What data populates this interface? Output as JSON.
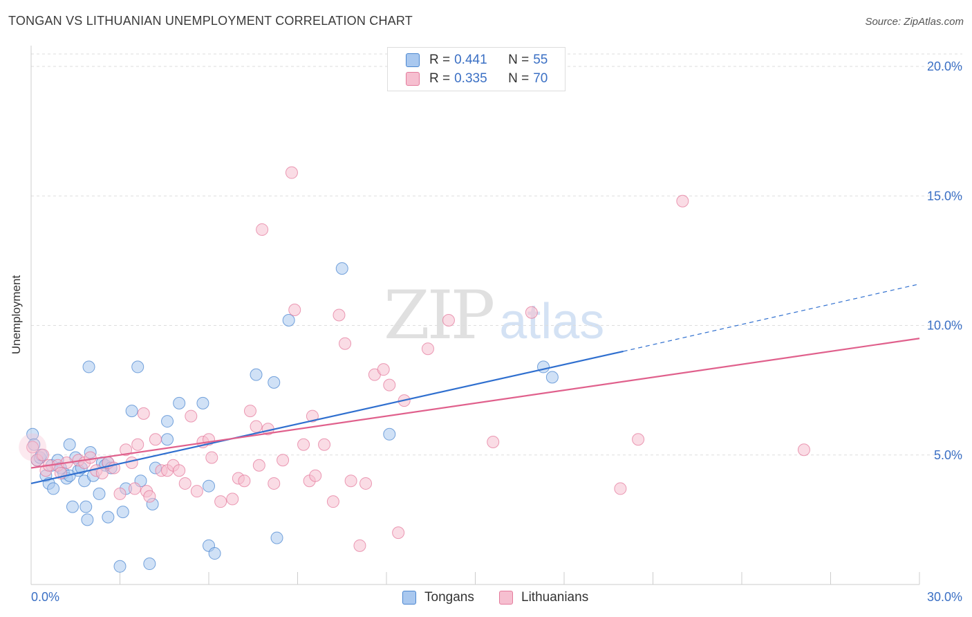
{
  "header": {
    "title": "TONGAN VS LITHUANIAN UNEMPLOYMENT CORRELATION CHART",
    "source": "Source: ZipAtlas.com"
  },
  "watermark": {
    "zip": "ZIP",
    "atlas": "atlas"
  },
  "colors": {
    "tongans_fill": "#a9c8ef",
    "tongans_stroke": "#4a86d0",
    "tongans_line": "#2f6fcf",
    "lithuanians_fill": "#f6bfd0",
    "lithuanians_stroke": "#e47a9c",
    "lithuanians_line": "#e0608c",
    "tick_text": "#3a6fc4"
  },
  "legend_top": {
    "rows": [
      {
        "r_label": "R =",
        "r_value": "0.441",
        "n_label": "N =",
        "n_value": "55"
      },
      {
        "r_label": "R =",
        "r_value": "0.335",
        "n_label": "N =",
        "n_value": "70"
      }
    ]
  },
  "legend_bottom": {
    "tongans": "Tongans",
    "lithuanians": "Lithuanians"
  },
  "chart_data": {
    "type": "scatter",
    "title": "TONGAN VS LITHUANIAN UNEMPLOYMENT CORRELATION CHART",
    "xlabel": "",
    "ylabel": "Unemployment",
    "xlim": [
      0,
      30
    ],
    "ylim": [
      0,
      20
    ],
    "x_tick_labels": [
      "0.0%",
      "30.0%"
    ],
    "y_ticks": [
      5,
      10,
      15,
      20
    ],
    "y_tick_labels": [
      "5.0%",
      "10.0%",
      "15.0%",
      "20.0%"
    ],
    "grid": true,
    "series": [
      {
        "name": "Tongans",
        "r": 0.441,
        "n": 55,
        "trend": {
          "x0": 0,
          "y0": 3.9,
          "x1": 20,
          "y1": 9.0,
          "dashed_to_x": 30,
          "dashed_to_y": 11.6
        },
        "points": [
          [
            0.05,
            5.8
          ],
          [
            0.1,
            5.4
          ],
          [
            0.2,
            4.8
          ],
          [
            0.3,
            4.9
          ],
          [
            0.35,
            5.0
          ],
          [
            0.5,
            4.2
          ],
          [
            0.6,
            3.9
          ],
          [
            0.7,
            4.6
          ],
          [
            0.75,
            3.7
          ],
          [
            0.9,
            4.8
          ],
          [
            1.0,
            4.5
          ],
          [
            1.1,
            4.3
          ],
          [
            1.2,
            4.1
          ],
          [
            1.3,
            4.2
          ],
          [
            1.3,
            5.4
          ],
          [
            1.4,
            3.0
          ],
          [
            1.5,
            4.9
          ],
          [
            1.6,
            4.4
          ],
          [
            1.7,
            4.5
          ],
          [
            1.8,
            4.0
          ],
          [
            1.85,
            3.0
          ],
          [
            1.9,
            2.5
          ],
          [
            1.95,
            8.4
          ],
          [
            2.0,
            5.1
          ],
          [
            2.1,
            4.2
          ],
          [
            2.3,
            3.5
          ],
          [
            2.4,
            4.7
          ],
          [
            2.5,
            4.6
          ],
          [
            2.6,
            4.7
          ],
          [
            2.6,
            2.6
          ],
          [
            2.7,
            4.5
          ],
          [
            3.0,
            0.7
          ],
          [
            3.1,
            2.8
          ],
          [
            3.2,
            3.7
          ],
          [
            3.4,
            6.7
          ],
          [
            3.6,
            8.4
          ],
          [
            3.7,
            4.0
          ],
          [
            4.0,
            0.8
          ],
          [
            4.1,
            3.1
          ],
          [
            4.2,
            4.5
          ],
          [
            4.6,
            5.6
          ],
          [
            4.6,
            6.3
          ],
          [
            5.0,
            7.0
          ],
          [
            5.8,
            7.0
          ],
          [
            6.0,
            1.5
          ],
          [
            6.0,
            3.8
          ],
          [
            6.2,
            1.2
          ],
          [
            7.6,
            8.1
          ],
          [
            8.2,
            7.8
          ],
          [
            8.3,
            1.8
          ],
          [
            8.7,
            10.2
          ],
          [
            10.5,
            12.2
          ],
          [
            12.1,
            5.8
          ],
          [
            17.3,
            8.4
          ],
          [
            17.6,
            8.0
          ]
        ]
      },
      {
        "name": "Lithuanians",
        "r": 0.335,
        "n": 70,
        "trend": {
          "x0": 0,
          "y0": 4.5,
          "x1": 30,
          "y1": 9.5
        },
        "points": [
          [
            0.05,
            5.3
          ],
          [
            0.2,
            4.8
          ],
          [
            0.4,
            5.0
          ],
          [
            0.5,
            4.4
          ],
          [
            0.6,
            4.6
          ],
          [
            0.9,
            4.6
          ],
          [
            1.0,
            4.3
          ],
          [
            1.2,
            4.7
          ],
          [
            1.6,
            4.8
          ],
          [
            1.8,
            4.7
          ],
          [
            2.0,
            4.9
          ],
          [
            2.2,
            4.4
          ],
          [
            2.4,
            4.3
          ],
          [
            2.6,
            4.7
          ],
          [
            2.8,
            4.5
          ],
          [
            3.0,
            3.5
          ],
          [
            3.2,
            5.2
          ],
          [
            3.4,
            4.7
          ],
          [
            3.5,
            3.7
          ],
          [
            3.6,
            5.4
          ],
          [
            3.8,
            6.6
          ],
          [
            3.9,
            3.6
          ],
          [
            4.0,
            3.4
          ],
          [
            4.2,
            5.6
          ],
          [
            4.4,
            4.4
          ],
          [
            4.6,
            4.4
          ],
          [
            4.8,
            4.6
          ],
          [
            5.0,
            4.4
          ],
          [
            5.2,
            3.9
          ],
          [
            5.4,
            6.5
          ],
          [
            5.6,
            3.6
          ],
          [
            5.8,
            5.5
          ],
          [
            6.0,
            5.6
          ],
          [
            6.1,
            4.9
          ],
          [
            6.4,
            3.2
          ],
          [
            6.8,
            3.3
          ],
          [
            7.0,
            4.1
          ],
          [
            7.2,
            4.0
          ],
          [
            7.4,
            6.7
          ],
          [
            7.6,
            6.1
          ],
          [
            7.7,
            4.6
          ],
          [
            7.8,
            13.7
          ],
          [
            8.0,
            6.0
          ],
          [
            8.2,
            3.9
          ],
          [
            8.5,
            4.8
          ],
          [
            8.8,
            15.9
          ],
          [
            8.9,
            10.6
          ],
          [
            9.2,
            5.4
          ],
          [
            9.4,
            4.0
          ],
          [
            9.5,
            6.5
          ],
          [
            9.6,
            4.2
          ],
          [
            9.9,
            5.4
          ],
          [
            10.2,
            3.2
          ],
          [
            10.4,
            10.4
          ],
          [
            10.6,
            9.3
          ],
          [
            10.8,
            4.0
          ],
          [
            11.1,
            1.5
          ],
          [
            11.3,
            3.9
          ],
          [
            11.6,
            8.1
          ],
          [
            11.9,
            8.3
          ],
          [
            12.1,
            7.7
          ],
          [
            12.4,
            2.0
          ],
          [
            12.6,
            7.1
          ],
          [
            13.4,
            9.1
          ],
          [
            14.1,
            10.2
          ],
          [
            15.6,
            5.5
          ],
          [
            16.9,
            10.5
          ],
          [
            19.9,
            3.7
          ],
          [
            20.5,
            5.6
          ],
          [
            22.0,
            14.8
          ]
        ]
      }
    ],
    "extra_points": {
      "Lithuanians": [
        [
          26.1,
          5.2
        ]
      ]
    }
  }
}
